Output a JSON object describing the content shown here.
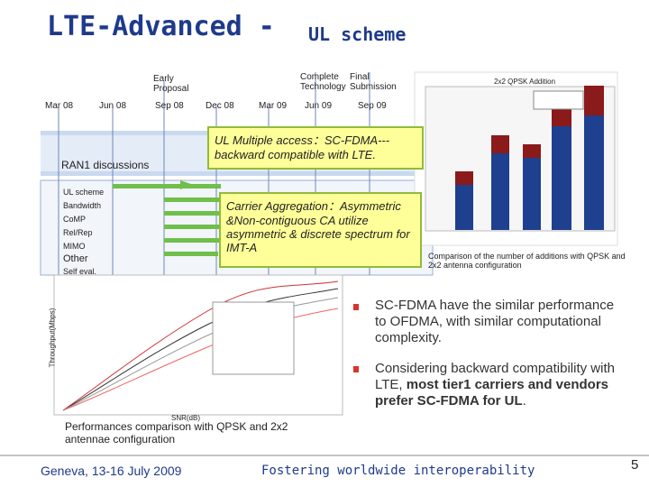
{
  "title": {
    "main": "LTE-Advanced -",
    "sub": "UL scheme"
  },
  "timeline": {
    "milestones": [
      "Early Proposal",
      "Complete Technology",
      "Final Submission"
    ],
    "months": [
      "Mar 08",
      "Jun 08",
      "Sep 08",
      "Dec 08",
      "Mar 09",
      "Jun 09",
      "Sep 09"
    ],
    "phase": "RAN1 discussions",
    "topics": [
      "UL scheme",
      "Bandwidth",
      "CoMP",
      "Rel/Rep",
      "MIMO",
      "Other",
      "Self eval."
    ]
  },
  "callouts": [
    "UL Multiple access：SC-FDMA---backward compatible with LTE.",
    "Carrier Aggregation：Asymmetric &Non-contiguous CA utilize asymmetric & discrete spectrum for IMT-A"
  ],
  "figures": {
    "bar_title": "2x2 QPSK Addition",
    "bar_caption": "Comparison of the number of additions with QPSK and 2x2 antenna configuration",
    "line_ylabel": "Throughput(Mbps)",
    "line_xlabel": "SNR(dB)",
    "line_caption": "Performances comparison with QPSK and 2x2 antennae configuration"
  },
  "bullets": [
    {
      "text": "SC-FDMA have the similar performance to OFDMA, with similar computational complexity."
    },
    {
      "parts": [
        "Considering backward compatibility with LTE, ",
        "most tier1 carriers and vendors prefer  SC-FDMA for UL",
        "."
      ]
    }
  ],
  "footer": {
    "left": "Geneva, 13-16 July 2009",
    "center": "Fostering worldwide interoperability",
    "page": "5"
  }
}
